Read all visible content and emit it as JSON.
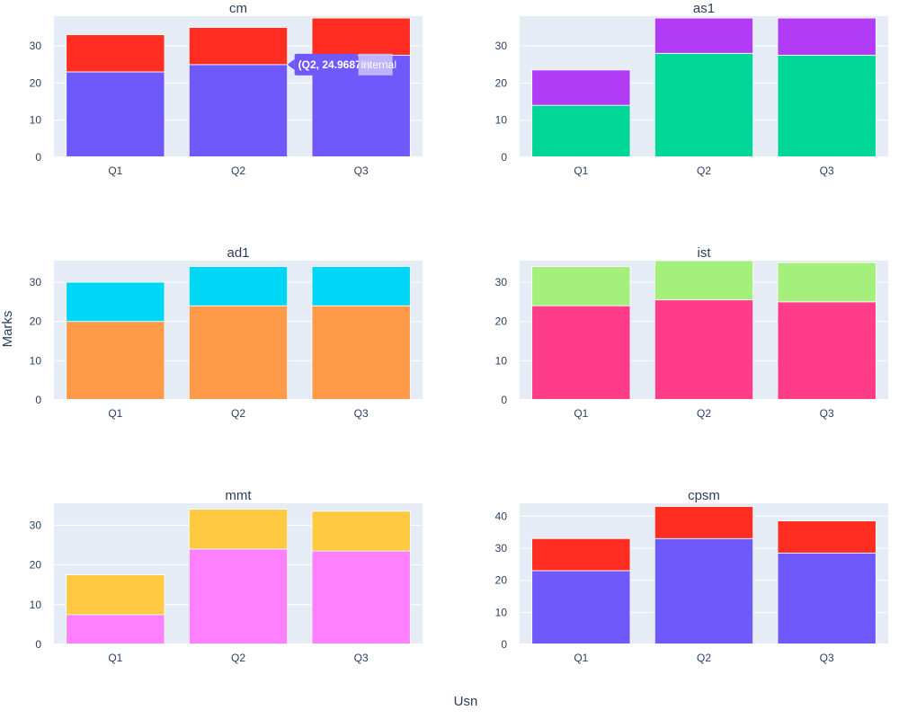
{
  "chart_data": {
    "type": "bar",
    "layout": "subplots-3x2",
    "barmode": "stack",
    "ylabel": "Marks",
    "xlabel": "Usn",
    "categories": [
      "Q1",
      "Q2",
      "Q3"
    ],
    "subplots": [
      {
        "title": "cm",
        "ylim": [
          0,
          38
        ],
        "yticks": [
          0,
          10,
          20,
          30
        ],
        "series": [
          {
            "name": "internal",
            "color": "#7059fa",
            "values": [
              23,
              24.96875,
              27.5
            ]
          },
          {
            "name": "",
            "color": "#ff2d22",
            "values": [
              10,
              10,
              10
            ]
          }
        ]
      },
      {
        "title": "as1",
        "ylim": [
          0,
          38
        ],
        "yticks": [
          0,
          10,
          20,
          30
        ],
        "series": [
          {
            "name": "",
            "color": "#00d696",
            "values": [
              14,
              28,
              27.5
            ]
          },
          {
            "name": "",
            "color": "#b23cf6",
            "values": [
              9.5,
              9.5,
              10
            ]
          }
        ]
      },
      {
        "title": "ad1",
        "ylim": [
          0,
          35.5
        ],
        "yticks": [
          0,
          10,
          20,
          30
        ],
        "series": [
          {
            "name": "",
            "color": "#ff9a48",
            "values": [
              20,
              24,
              24
            ]
          },
          {
            "name": "",
            "color": "#00d6f6",
            "values": [
              10,
              10,
              10
            ]
          }
        ]
      },
      {
        "title": "ist",
        "ylim": [
          0,
          35.5
        ],
        "yticks": [
          0,
          10,
          20,
          30
        ],
        "series": [
          {
            "name": "",
            "color": "#ff3c88",
            "values": [
              24,
              25.5,
              25
            ]
          },
          {
            "name": "",
            "color": "#a5f07c",
            "values": [
              10,
              10,
              10
            ]
          }
        ]
      },
      {
        "title": "mmt",
        "ylim": [
          0,
          35.5
        ],
        "yticks": [
          0,
          10,
          20,
          30
        ],
        "series": [
          {
            "name": "",
            "color": "#ff80ff",
            "values": [
              7.5,
              24,
              23.5
            ]
          },
          {
            "name": "",
            "color": "#ffc942",
            "values": [
              10,
              10,
              10
            ]
          }
        ]
      },
      {
        "title": "cpsm",
        "ylim": [
          0,
          44
        ],
        "yticks": [
          0,
          10,
          20,
          30,
          40
        ],
        "series": [
          {
            "name": "",
            "color": "#7059fa",
            "values": [
              23,
              33,
              28.5
            ]
          },
          {
            "name": "",
            "color": "#ff2d22",
            "values": [
              10,
              10,
              10
            ]
          }
        ]
      }
    ],
    "hover": {
      "subplot": 0,
      "series": 0,
      "category": 1,
      "text": "(Q2, 24.96875)",
      "name": "internal"
    },
    "grid": true,
    "legend": "none",
    "plot_bgcolor": "#e5ecf6"
  }
}
